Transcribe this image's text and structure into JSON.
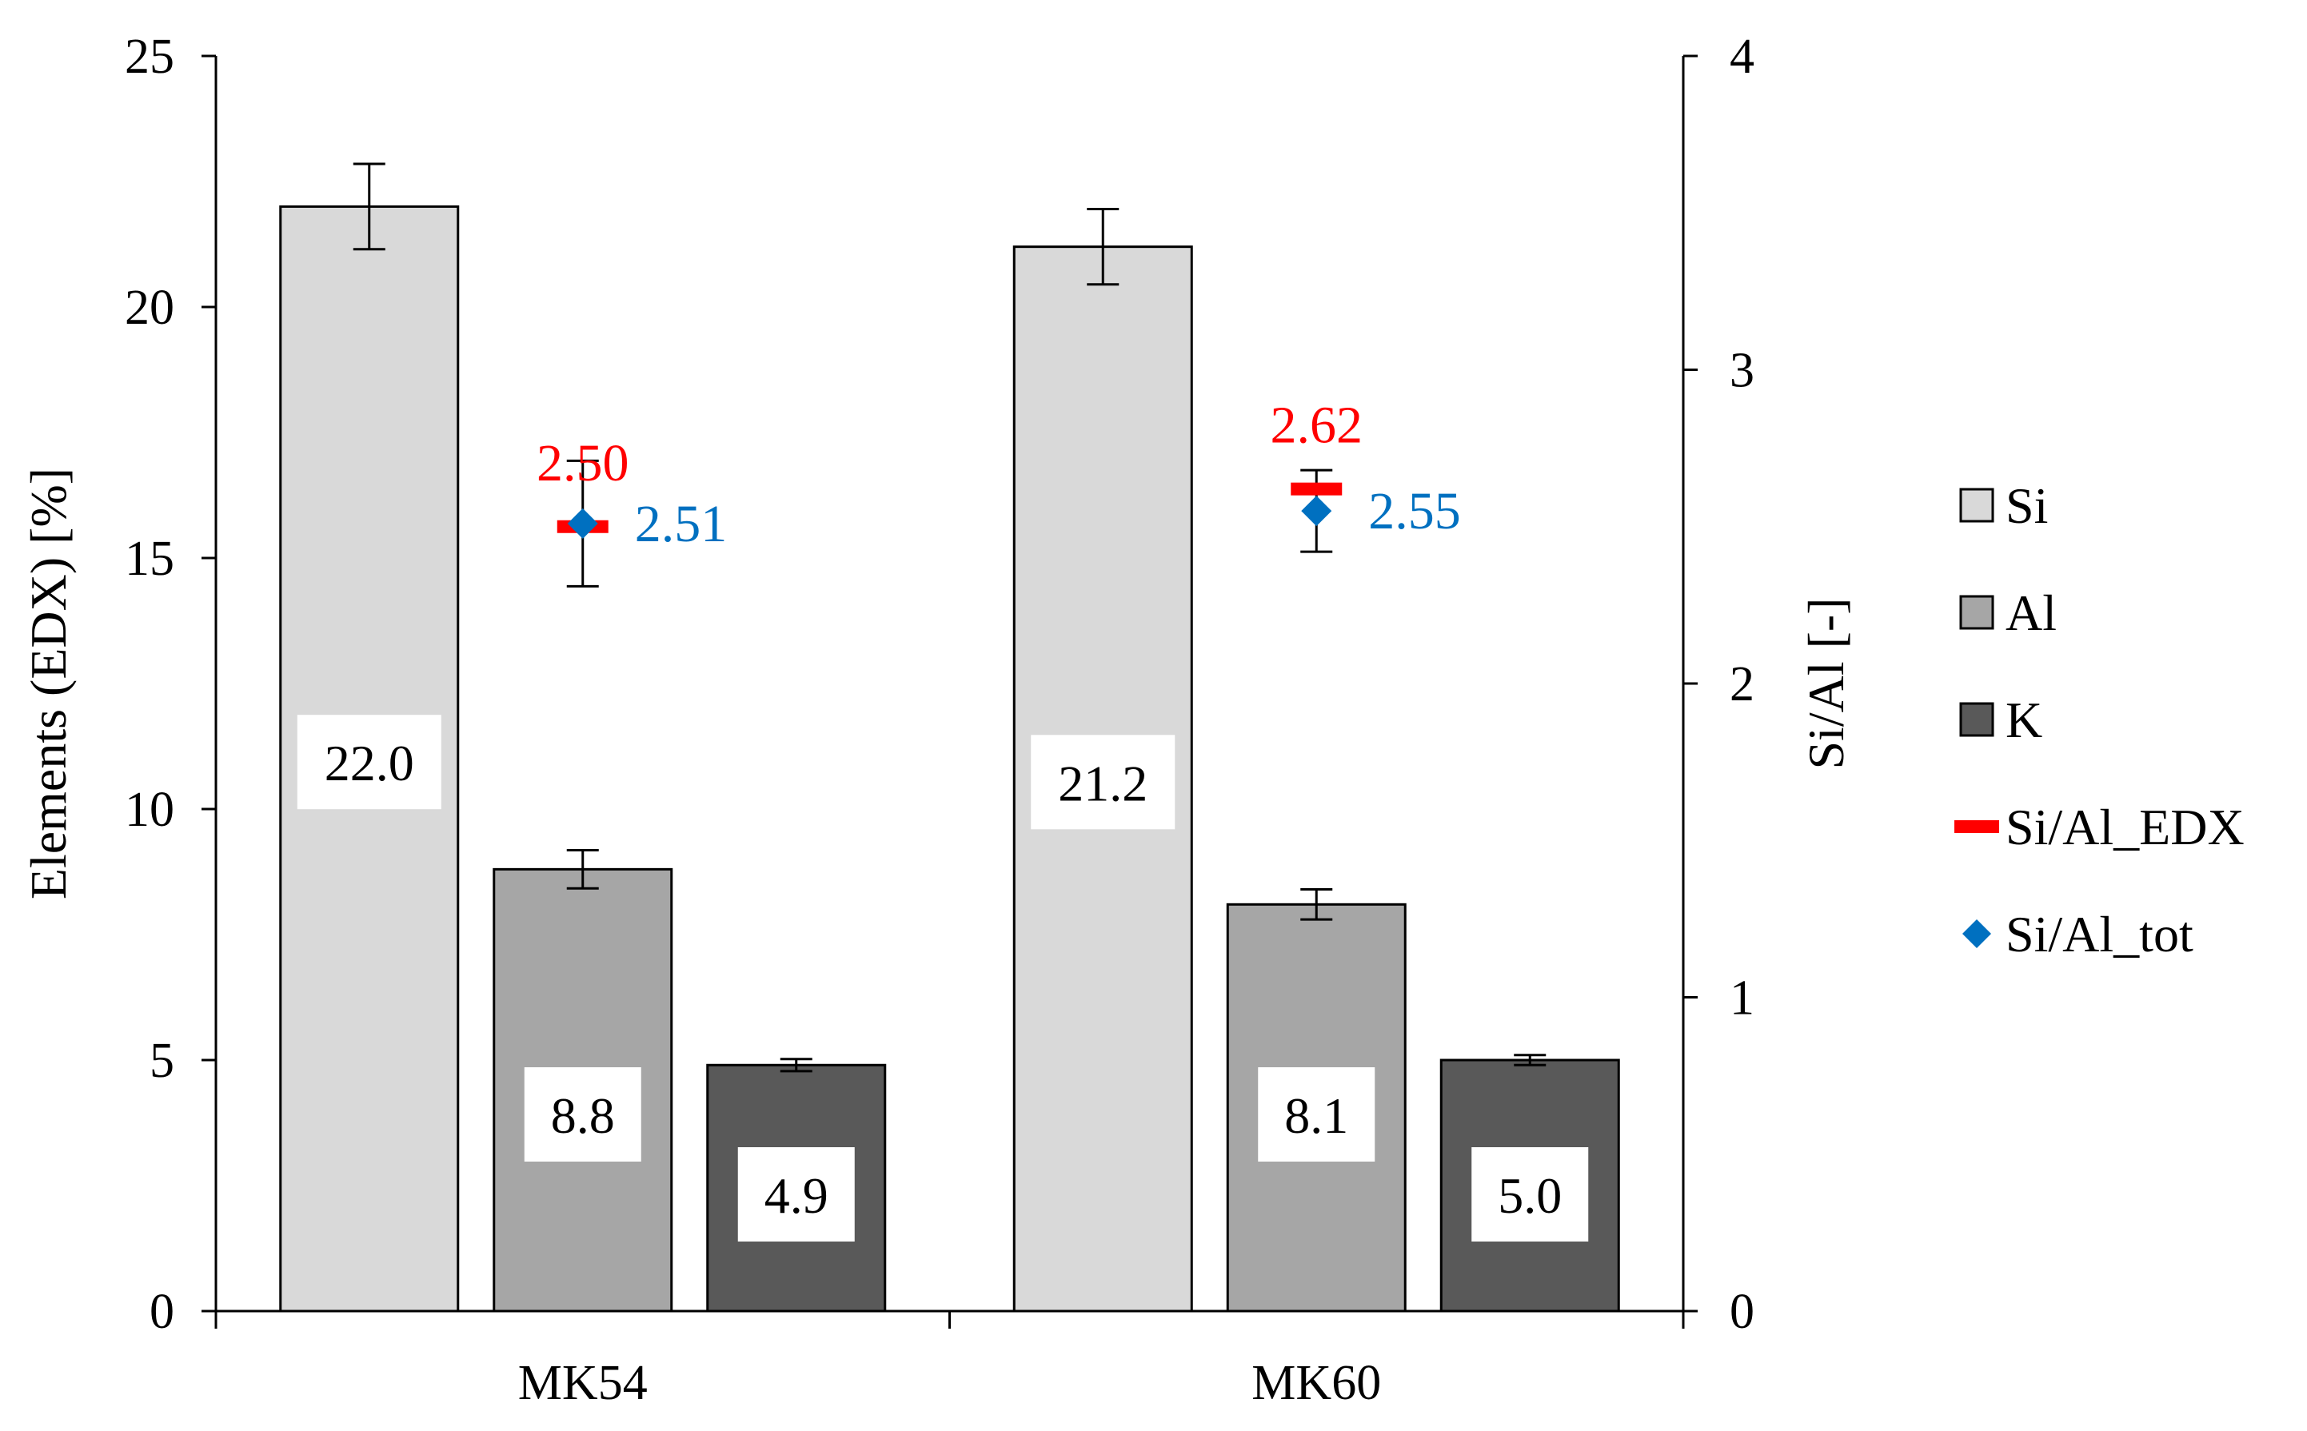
{
  "chart_data": {
    "type": "bar",
    "categories": [
      "MK54",
      "MK60"
    ],
    "ylabel": "Elements (EDX) [%]",
    "y2label": "Si/Al [-]",
    "ylim": [
      0,
      25
    ],
    "y2lim": [
      0,
      4
    ],
    "yticks": [
      "0",
      "5",
      "10",
      "15",
      "20",
      "25"
    ],
    "y2ticks": [
      "0",
      "1",
      "2",
      "3",
      "4"
    ],
    "series": [
      {
        "name": "Si",
        "color": "#D9D9D9",
        "values": [
          22.0,
          21.2
        ],
        "errors": [
          0.85,
          0.75
        ],
        "labels": [
          "22.0",
          "21.2"
        ]
      },
      {
        "name": "Al",
        "color": "#A6A6A6",
        "values": [
          8.8,
          8.1
        ],
        "errors": [
          0.38,
          0.3
        ],
        "labels": [
          "8.8",
          "8.1"
        ]
      },
      {
        "name": "K",
        "color": "#595959",
        "values": [
          4.9,
          5.0
        ],
        "errors": [
          0.12,
          0.1
        ],
        "labels": [
          "4.9",
          "5.0"
        ]
      }
    ],
    "ratio_series": [
      {
        "name": "Si/Al_EDX",
        "color": "#FF0000",
        "marker": "dash",
        "values": [
          2.5,
          2.62
        ],
        "labels": [
          "2.50",
          "2.62"
        ]
      },
      {
        "name": "Si/Al_tot",
        "color": "#0070C0",
        "marker": "diamond",
        "values": [
          2.51,
          2.55
        ],
        "errors": [
          0.2,
          0.13
        ],
        "labels": [
          "2.51",
          "2.55"
        ]
      }
    ],
    "legend": [
      "Si",
      "Al",
      "K",
      "Si/Al_EDX",
      "Si/Al_tot"
    ]
  }
}
